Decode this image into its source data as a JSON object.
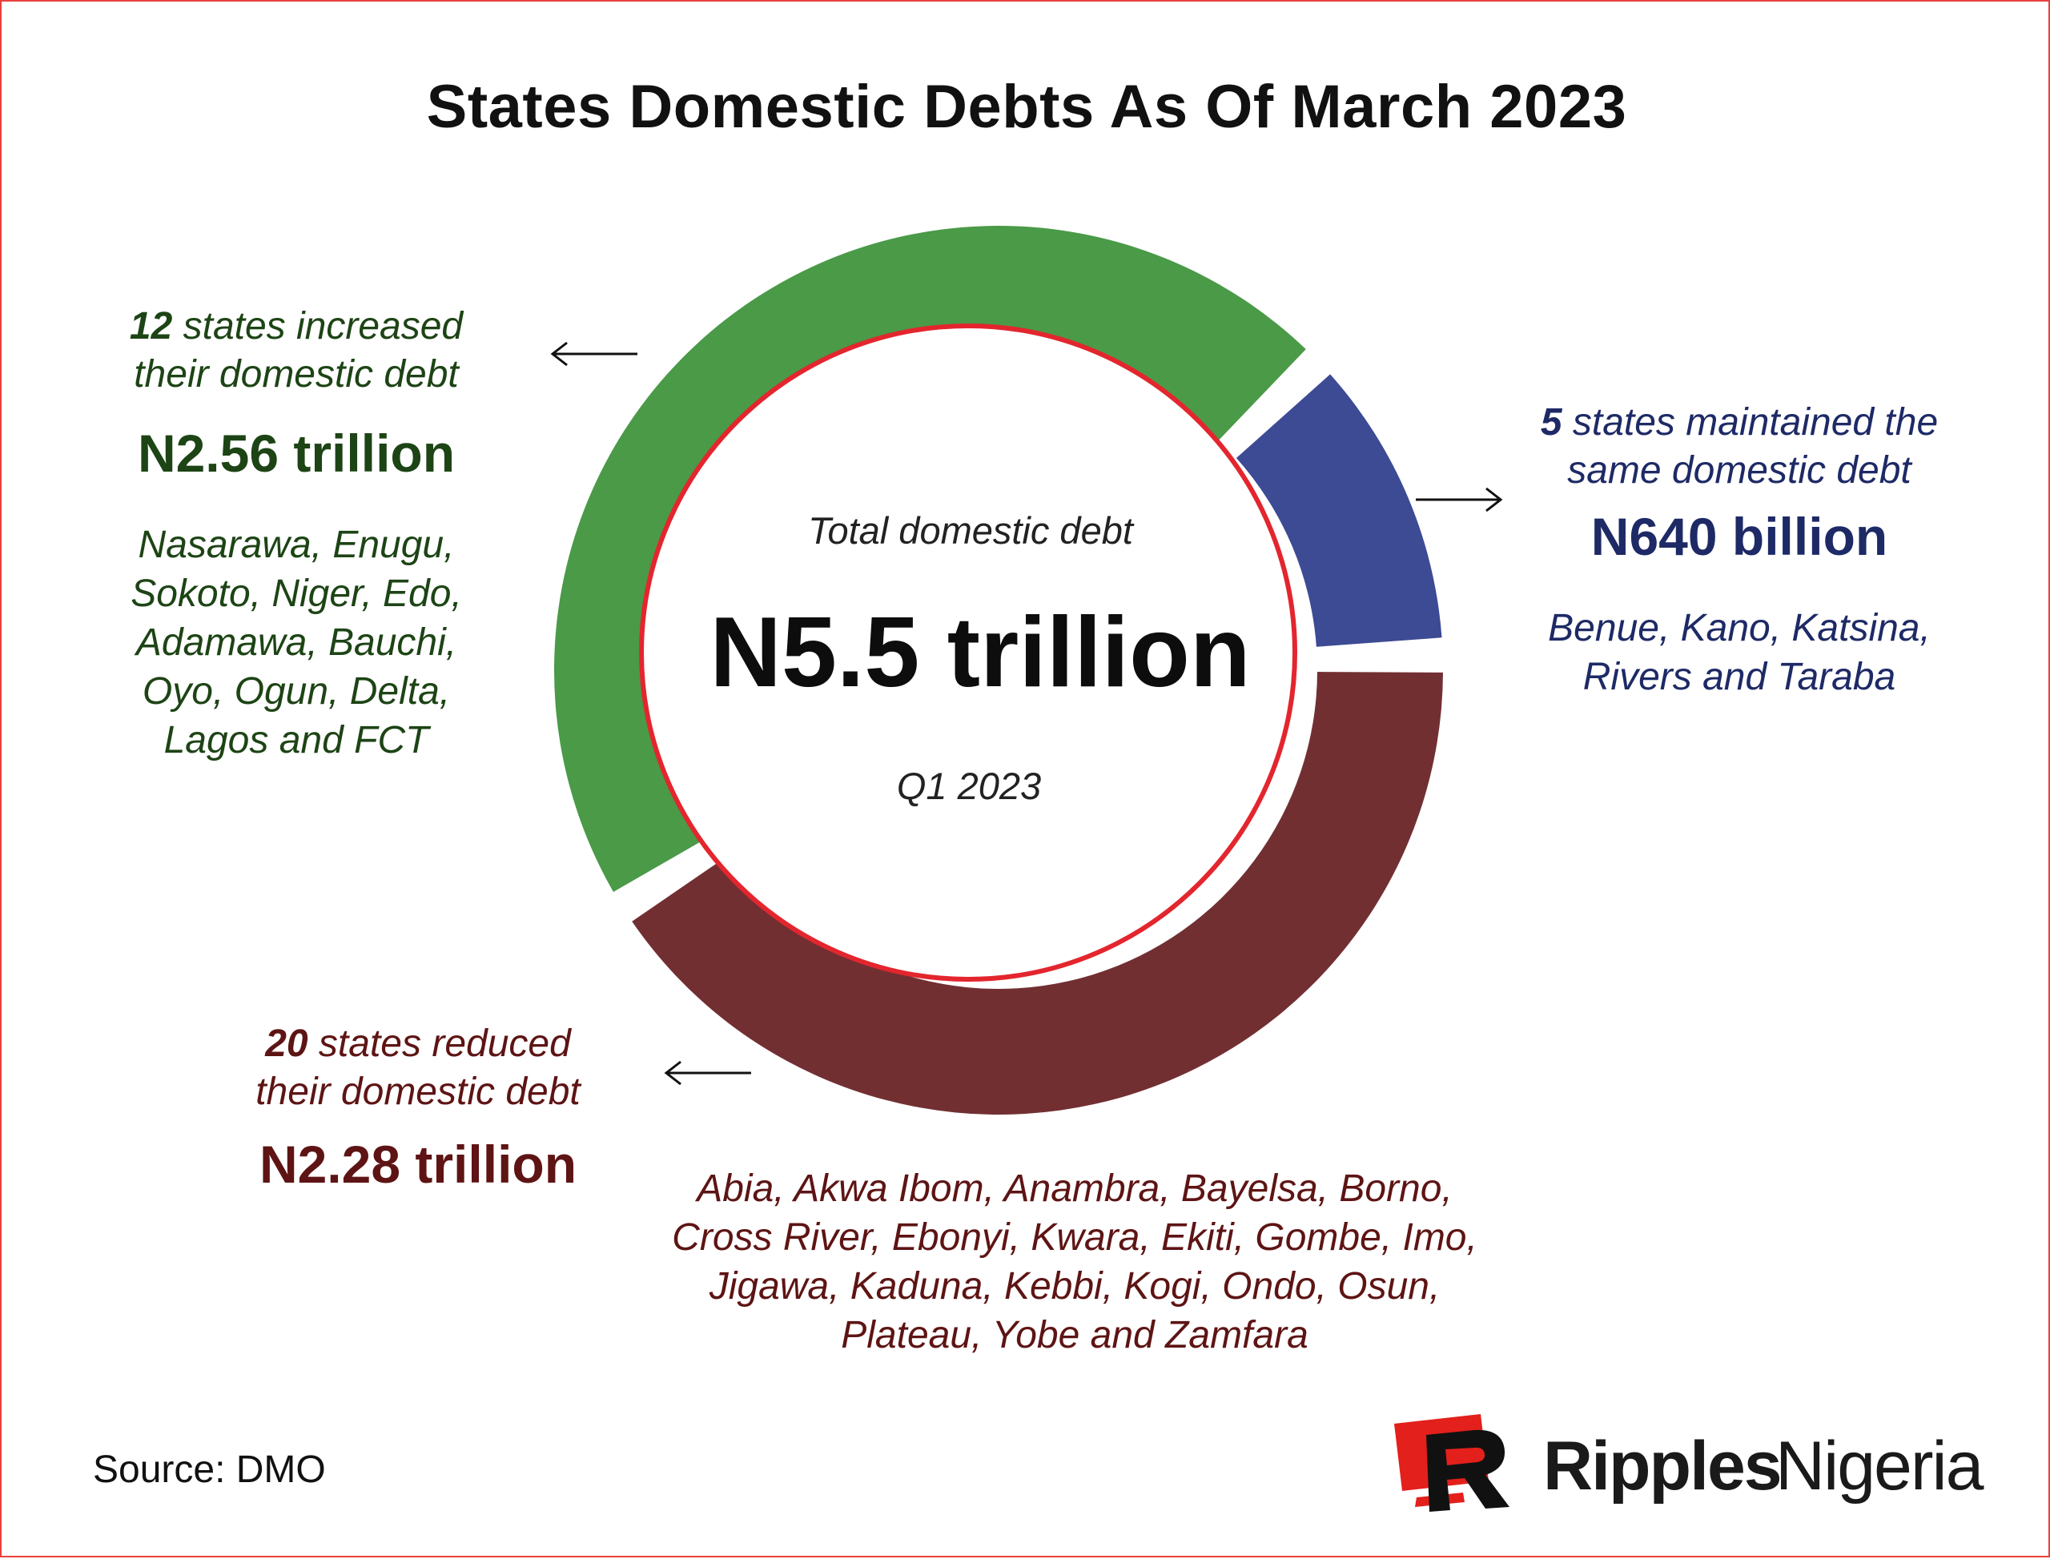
{
  "title": "States Domestic Debts As Of March 2023",
  "colors": {
    "increased": "#4a9a48",
    "maintained": "#3d4a94",
    "reduced": "#722f32",
    "center_border": "#e3262e"
  },
  "chart_data": {
    "type": "pie",
    "title": "States Domestic Debts As Of March 2023",
    "unit": "trillion naira",
    "slices": [
      {
        "label": "12 states increased their domestic debt",
        "value": 2.56,
        "amount": "N2.56 trillion"
      },
      {
        "label": "5 states maintained the same domestic debt",
        "value": 0.64,
        "amount": "N640 billion"
      },
      {
        "label": "20 states reduced their domestic debt",
        "value": 2.28,
        "amount": "N2.28 trillion"
      }
    ],
    "center": {
      "label": "Total domestic debt",
      "value": "N5.5 trillion",
      "period": "Q1 2023"
    }
  },
  "annotations": {
    "increased": {
      "count": "12",
      "line1": " states increased",
      "line2": "their domestic debt",
      "amount": "N2.56 trillion",
      "states": [
        "Nasarawa, Enugu,",
        "Sokoto, Niger, Edo,",
        "Adamawa, Bauchi,",
        "Oyo, Ogun, Delta,",
        "Lagos and FCT"
      ]
    },
    "maintained": {
      "count": "5",
      "line1": " states maintained the",
      "line2": "same domestic debt",
      "amount": "N640 billion",
      "states": [
        "Benue, Kano, Katsina,",
        "Rivers and Taraba"
      ]
    },
    "reduced": {
      "count": "20",
      "line1": " states reduced",
      "line2": "their domestic debt",
      "amount": "N2.28 trillion",
      "states": [
        "Abia, Akwa Ibom, Anambra, Bayelsa, Borno,",
        "Cross River, Ebonyi, Kwara, Ekiti, Gombe, Imo,",
        "Jigawa, Kaduna, Kebbi, Kogi, Ondo, Osun,",
        "Plateau, Yobe and Zamfara"
      ]
    }
  },
  "source": "Source: DMO",
  "brand": {
    "strong": "Ripples",
    "light": "Nigeria",
    "logo_icon": "ripples-r-logo"
  }
}
